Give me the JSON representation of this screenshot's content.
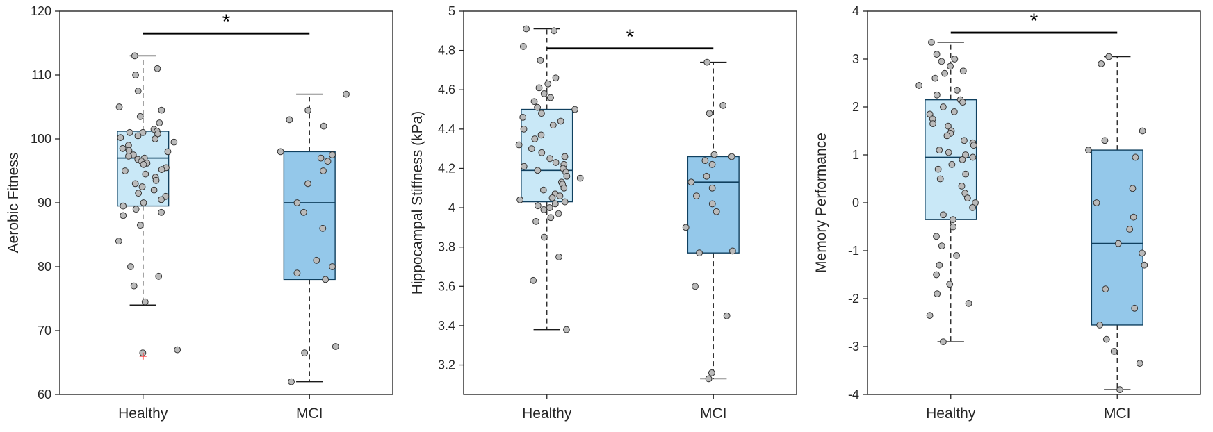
{
  "figure": {
    "background": "#ffffff"
  },
  "colors": {
    "axis": "#262626",
    "text": "#262626",
    "box_edge": "#10405f",
    "median": "#10405f",
    "whisker": "#1b1b1b",
    "point_fill": "#bababa",
    "point_edge": "#333333",
    "significance": "#000000",
    "outlier": "#ff2a2a"
  },
  "chart_data": [
    {
      "type": "boxplot",
      "title": "",
      "xlabel": "",
      "ylabel": "Aerobic Fitness",
      "ylim": [
        60,
        120
      ],
      "ytick_values": [
        60,
        70,
        80,
        90,
        100,
        110,
        120
      ],
      "ytick_labels": [
        "60",
        "70",
        "80",
        "90",
        "100",
        "110",
        "120"
      ],
      "categories": [
        "Healthy",
        "MCI"
      ],
      "significance": {
        "label": "*",
        "y": 116.5
      },
      "groups": [
        {
          "label": "Healthy",
          "fill": "#c9e8f7",
          "median": 97,
          "q1": 89.5,
          "q3": 101.2,
          "whisker_low": 74,
          "whisker_high": 113,
          "outliers": [
            66
          ],
          "points": [
            113,
            111,
            110,
            107.5,
            105,
            104.5,
            103.5,
            102.5,
            101.5,
            101.2,
            101,
            101,
            100.8,
            100.5,
            100.2,
            100,
            99.5,
            99,
            98.5,
            98.2,
            98,
            97.5,
            97.3,
            97,
            96.8,
            96.5,
            96.2,
            96,
            95.5,
            95.2,
            95,
            94.5,
            94,
            93.5,
            93,
            92.5,
            92,
            91.5,
            91,
            90.5,
            90,
            89.5,
            89,
            88.5,
            88,
            86.5,
            84,
            80,
            78.5,
            77,
            74.5,
            67,
            66.5
          ]
        },
        {
          "label": "MCI",
          "fill": "#94c8ea",
          "median": 90,
          "q1": 78,
          "q3": 98,
          "whisker_low": 62,
          "whisker_high": 107,
          "outliers": [],
          "points": [
            107,
            104.5,
            103,
            102,
            98,
            97.5,
            97,
            96.5,
            95,
            93,
            90,
            88.5,
            86,
            81,
            80,
            79,
            78,
            67.5,
            66.5,
            62
          ]
        }
      ]
    },
    {
      "type": "boxplot",
      "title": "",
      "xlabel": "",
      "ylabel": "Hippocampal Stiffness (kPa)",
      "ylim": [
        3.05,
        5.0
      ],
      "ytick_values": [
        3.2,
        3.4,
        3.6,
        3.8,
        4.0,
        4.2,
        4.4,
        4.6,
        4.8,
        5.0
      ],
      "ytick_labels": [
        "3.2",
        "3.4",
        "3.6",
        "3.8",
        "4",
        "4.2",
        "4.4",
        "4.6",
        "4.8",
        "5"
      ],
      "categories": [
        "Healthy",
        "MCI"
      ],
      "significance": {
        "label": "*",
        "y": 4.81
      },
      "groups": [
        {
          "label": "Healthy",
          "fill": "#c9e8f7",
          "median": 4.19,
          "q1": 4.03,
          "q3": 4.5,
          "whisker_low": 3.38,
          "whisker_high": 4.91,
          "outliers": [],
          "points": [
            4.91,
            4.9,
            4.82,
            4.75,
            4.66,
            4.63,
            4.61,
            4.58,
            4.56,
            4.54,
            4.51,
            4.5,
            4.48,
            4.46,
            4.44,
            4.42,
            4.4,
            4.37,
            4.35,
            4.32,
            4.3,
            4.28,
            4.26,
            4.25,
            4.23,
            4.22,
            4.21,
            4.2,
            4.19,
            4.18,
            4.16,
            4.15,
            4.13,
            4.12,
            4.1,
            4.09,
            4.07,
            4.06,
            4.05,
            4.04,
            4.03,
            4.02,
            4.01,
            4.0,
            3.99,
            3.97,
            3.95,
            3.93,
            3.85,
            3.75,
            3.63,
            3.38
          ]
        },
        {
          "label": "MCI",
          "fill": "#94c8ea",
          "median": 4.13,
          "q1": 3.77,
          "q3": 4.26,
          "whisker_low": 3.13,
          "whisker_high": 4.74,
          "outliers": [],
          "points": [
            4.74,
            4.52,
            4.48,
            4.27,
            4.26,
            4.24,
            4.22,
            4.16,
            4.13,
            4.1,
            4.06,
            4.02,
            3.98,
            3.9,
            3.78,
            3.77,
            3.6,
            3.45,
            3.16,
            3.13
          ]
        }
      ]
    },
    {
      "type": "boxplot",
      "title": "",
      "xlabel": "",
      "ylabel": "Memory Performance",
      "ylim": [
        -4,
        4
      ],
      "ytick_values": [
        -4,
        -3,
        -2,
        -1,
        0,
        1,
        2,
        3,
        4
      ],
      "ytick_labels": [
        "-4",
        "-3",
        "-2",
        "-1",
        "0",
        "1",
        "2",
        "3",
        "4"
      ],
      "categories": [
        "Healthy",
        "MCI"
      ],
      "significance": {
        "label": "*",
        "y": 3.55
      },
      "groups": [
        {
          "label": "Healthy",
          "fill": "#c9e8f7",
          "median": 0.95,
          "q1": -0.35,
          "q3": 2.15,
          "whisker_low": -2.9,
          "whisker_high": 3.35,
          "outliers": [],
          "points": [
            3.35,
            3.1,
            3.0,
            2.95,
            2.85,
            2.75,
            2.7,
            2.6,
            2.45,
            2.35,
            2.25,
            2.15,
            2.1,
            2.0,
            1.9,
            1.85,
            1.75,
            1.65,
            1.6,
            1.5,
            1.45,
            1.4,
            1.3,
            1.25,
            1.2,
            1.1,
            1.05,
            1.0,
            0.95,
            0.9,
            0.8,
            0.7,
            0.6,
            0.5,
            0.35,
            0.2,
            0.1,
            0.0,
            -0.1,
            -0.25,
            -0.35,
            -0.5,
            -0.7,
            -0.9,
            -1.1,
            -1.3,
            -1.5,
            -1.7,
            -1.9,
            -2.1,
            -2.35,
            -2.9
          ]
        },
        {
          "label": "MCI",
          "fill": "#94c8ea",
          "median": -0.85,
          "q1": -2.55,
          "q3": 1.1,
          "whisker_low": -3.9,
          "whisker_high": 3.05,
          "outliers": [],
          "points": [
            3.05,
            2.9,
            1.5,
            1.3,
            1.1,
            0.95,
            0.3,
            0.0,
            -0.3,
            -0.55,
            -0.85,
            -1.05,
            -1.3,
            -1.8,
            -2.2,
            -2.55,
            -2.85,
            -3.1,
            -3.35,
            -3.9
          ]
        }
      ]
    }
  ]
}
